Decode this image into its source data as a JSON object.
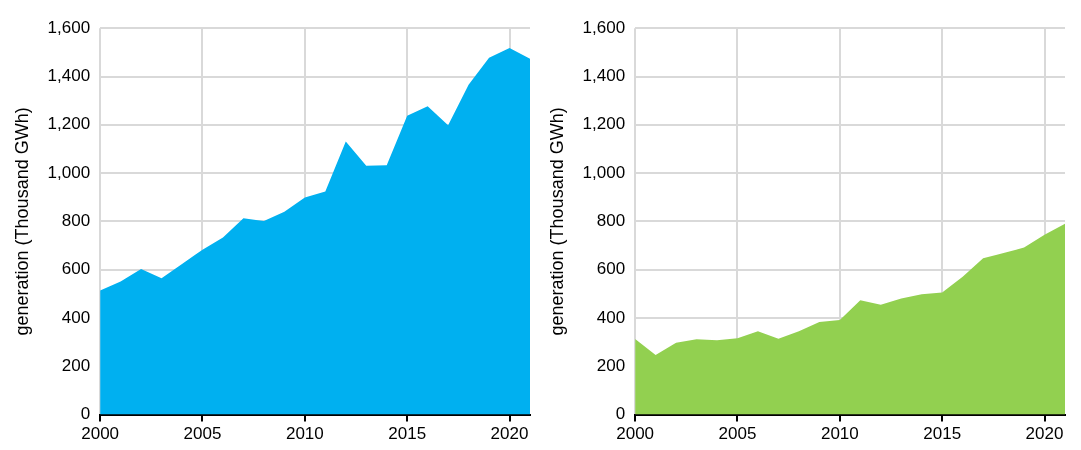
{
  "chart_data": [
    {
      "type": "area",
      "ylabel": "generation (Thousand GWh)",
      "x": [
        2000,
        2001,
        2002,
        2003,
        2004,
        2005,
        2006,
        2007,
        2008,
        2009,
        2010,
        2011,
        2012,
        2013,
        2014,
        2015,
        2016,
        2017,
        2018,
        2019,
        2020,
        2021
      ],
      "series": [
        {
          "color": "#00b0f0",
          "values": [
            514,
            551,
            603,
            565,
            624,
            683,
            733,
            813,
            802,
            840,
            899,
            924,
            1131,
            1030,
            1033,
            1237,
            1277,
            1198,
            1366,
            1478,
            1518,
            1474
          ]
        }
      ],
      "xlim": [
        2000,
        2021
      ],
      "xticks": [
        2000,
        2005,
        2010,
        2015,
        2020
      ],
      "ylim": [
        0,
        1600
      ],
      "yticks": [
        0,
        200,
        400,
        600,
        800,
        {
          "value": 1000,
          "label": "1,000"
        },
        {
          "value": 1200,
          "label": "1,200"
        },
        {
          "value": 1400,
          "label": "1,400"
        },
        {
          "value": 1600,
          "label": "1,600"
        }
      ],
      "grid": true
    },
    {
      "type": "area",
      "ylabel": "generation (Thousand GWh)",
      "x": [
        2000,
        2001,
        2002,
        2003,
        2004,
        2005,
        2006,
        2007,
        2008,
        2009,
        2010,
        2011,
        2012,
        2013,
        2014,
        2015,
        2016,
        2017,
        2018,
        2019,
        2020,
        2021
      ],
      "series": [
        {
          "color": "#92d050",
          "values": [
            313,
            247,
            298,
            312,
            308,
            316,
            345,
            314,
            345,
            383,
            392,
            474,
            455,
            481,
            498,
            506,
            571,
            647,
            669,
            692,
            745,
            790
          ]
        }
      ],
      "xlim": [
        2000,
        2021
      ],
      "xticks": [
        2000,
        2005,
        2010,
        2015,
        2020
      ],
      "ylim": [
        0,
        1600
      ],
      "yticks": [
        0,
        200,
        400,
        600,
        800,
        {
          "value": 1000,
          "label": "1,000"
        },
        {
          "value": 1200,
          "label": "1,200"
        },
        {
          "value": 1400,
          "label": "1,400"
        },
        {
          "value": 1600,
          "label": "1,600"
        }
      ],
      "grid": true
    }
  ]
}
